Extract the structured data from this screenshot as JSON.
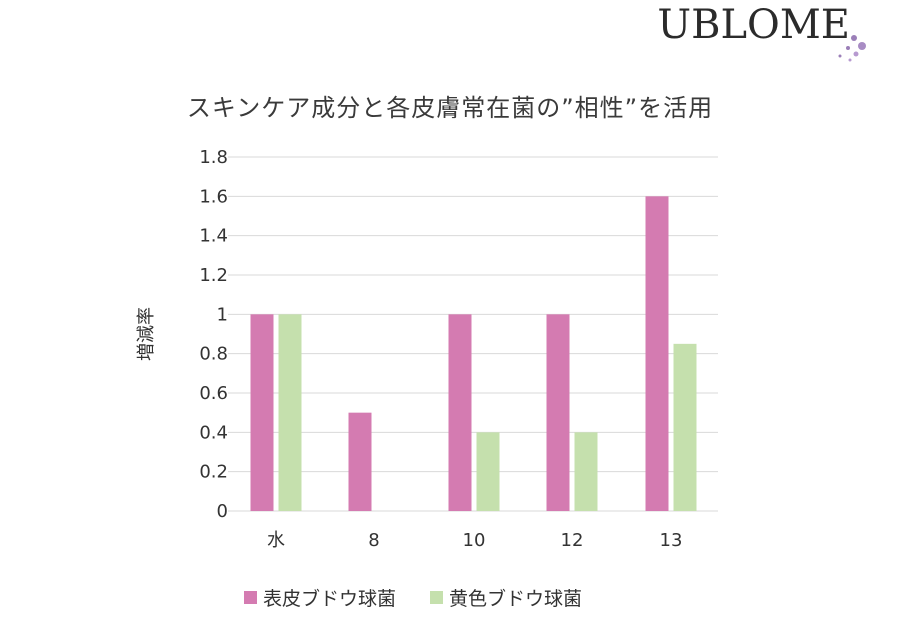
{
  "brand": {
    "logo_text": "UBLOME"
  },
  "chart_data": {
    "type": "bar",
    "title": "スキンケア成分と各皮膚常在菌の”相性”を活用",
    "ylabel": "増減率",
    "xlabel": "",
    "categories": [
      "水",
      "8",
      "10",
      "12",
      "13"
    ],
    "yticks": [
      "0",
      "0.2",
      "0.4",
      "0.6",
      "0.8",
      "1",
      "1.2",
      "1.4",
      "1.6",
      "1.8"
    ],
    "ylim": [
      0,
      1.8
    ],
    "grid": true,
    "legend_position": "bottom",
    "series": [
      {
        "name": "表皮ブドウ球菌",
        "color": "#d47bb1",
        "values": [
          1.0,
          0.5,
          1.0,
          1.0,
          1.6
        ]
      },
      {
        "name": "黄色ブドウ球菌",
        "color": "#c5e0ad",
        "values": [
          1.0,
          0.0,
          0.4,
          0.4,
          0.85
        ]
      }
    ]
  }
}
